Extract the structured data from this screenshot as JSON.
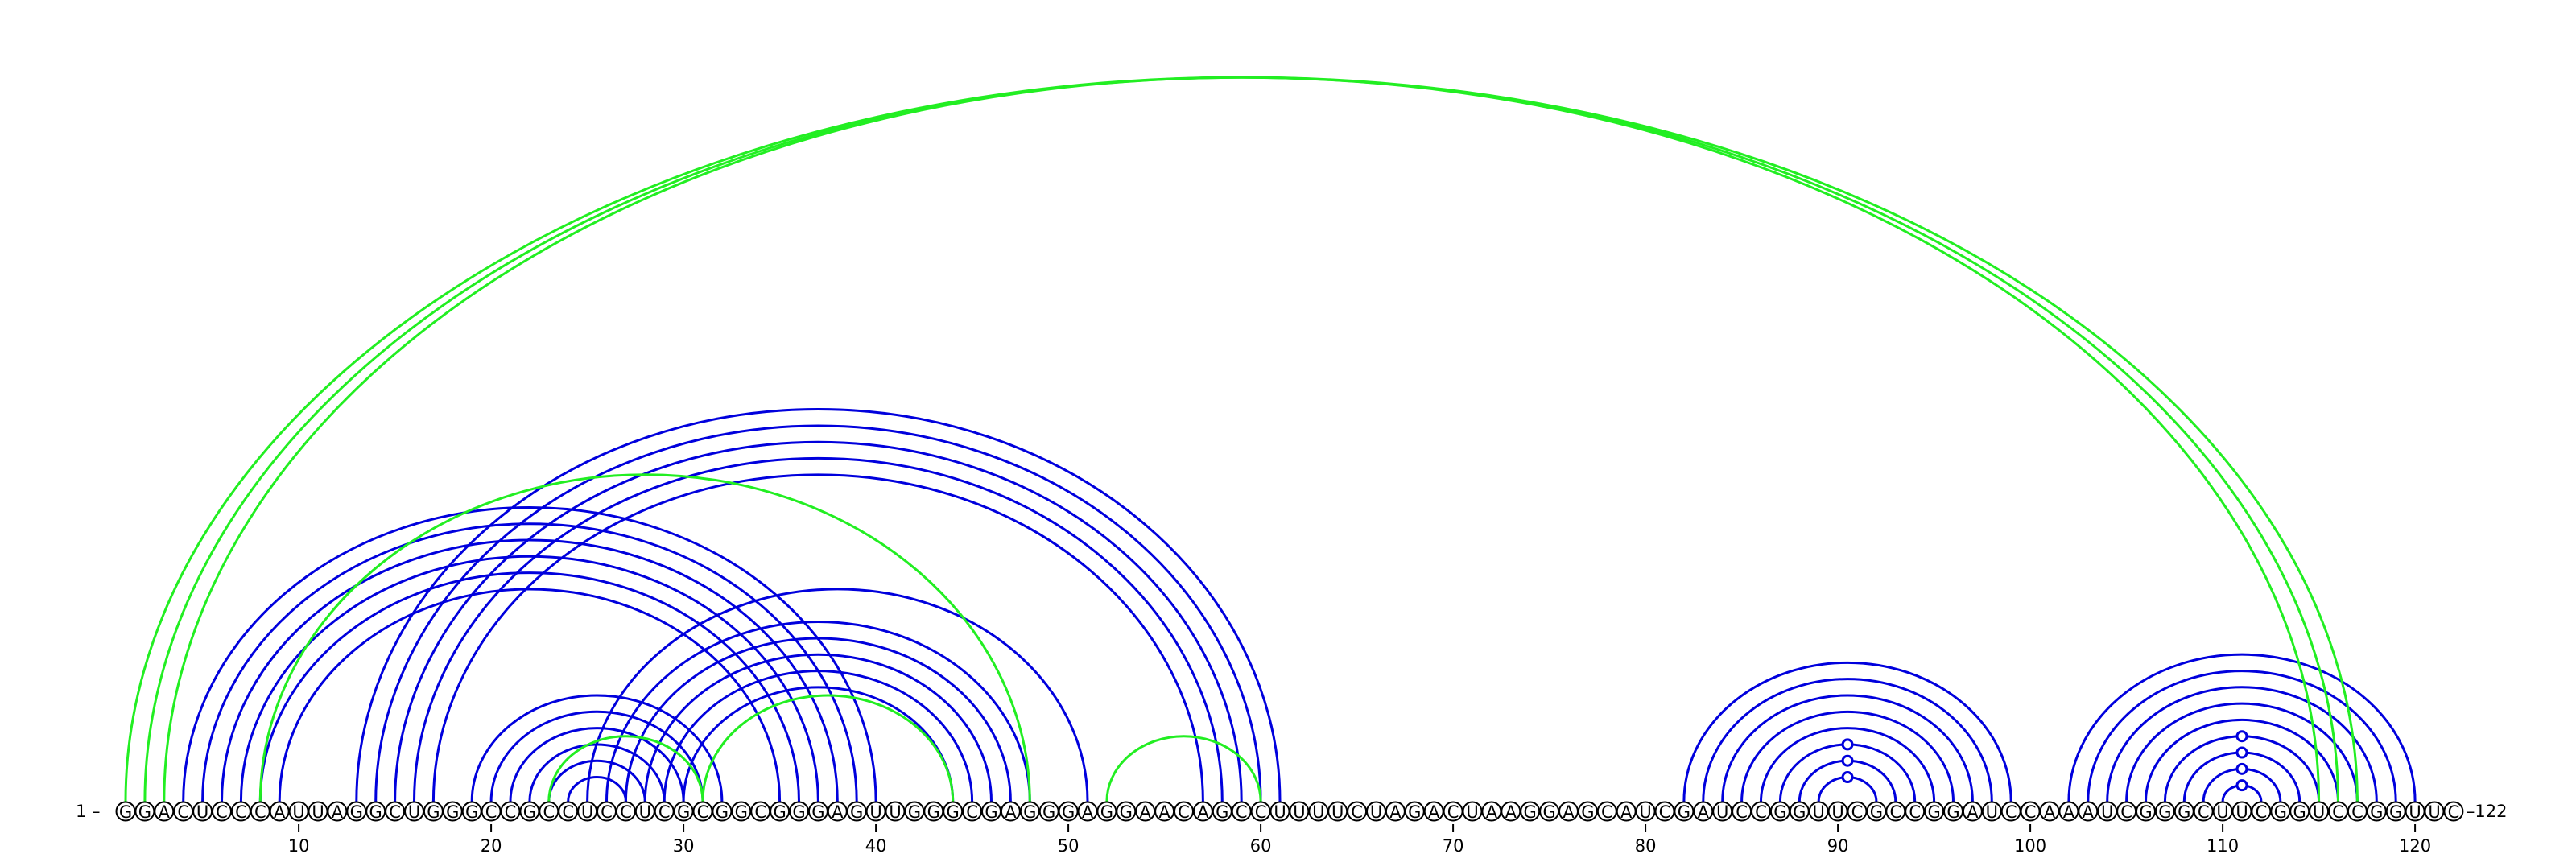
{
  "sequence": "GGACUCCCAUUAGGCUGGGCCGCCUCCUCGCGGCGGGAGUUGGGCGAGGGAGGAACAGCCUUUUCUAGACUAAGGAGCAUCGAUCCGGUUCGCCGGAUCCAAAUCGGGCUUCGGUCCGGUUC",
  "start_label": "1 –",
  "end_label": "–122",
  "ticks": [
    {
      "pos": 10,
      "label": "10"
    },
    {
      "pos": 20,
      "label": "20"
    },
    {
      "pos": 30,
      "label": "30"
    },
    {
      "pos": 40,
      "label": "40"
    },
    {
      "pos": 50,
      "label": "50"
    },
    {
      "pos": 60,
      "label": "60"
    },
    {
      "pos": 70,
      "label": "70"
    },
    {
      "pos": 80,
      "label": "80"
    },
    {
      "pos": 90,
      "label": "90"
    },
    {
      "pos": 100,
      "label": "100"
    },
    {
      "pos": 110,
      "label": "110"
    },
    {
      "pos": 120,
      "label": "120"
    }
  ],
  "colors": {
    "blue": "#0000dd",
    "green": "#22ee22",
    "circle_outline": "#000000"
  },
  "arcs": {
    "green": [
      [
        1,
        117
      ],
      [
        2,
        116
      ],
      [
        3,
        115
      ],
      [
        8,
        48
      ],
      [
        23,
        31
      ],
      [
        31,
        44
      ],
      [
        52,
        60
      ]
    ],
    "blue": [
      [
        4,
        40
      ],
      [
        5,
        39
      ],
      [
        6,
        38
      ],
      [
        7,
        37
      ],
      [
        8,
        36
      ],
      [
        9,
        35
      ],
      [
        13,
        61
      ],
      [
        14,
        60
      ],
      [
        15,
        59
      ],
      [
        16,
        58
      ],
      [
        17,
        57
      ],
      [
        19,
        32
      ],
      [
        20,
        31
      ],
      [
        21,
        30
      ],
      [
        22,
        29
      ],
      [
        23,
        28
      ],
      [
        24,
        27
      ],
      [
        25,
        51
      ],
      [
        26,
        48
      ],
      [
        27,
        47
      ],
      [
        28,
        46
      ],
      [
        29,
        45
      ],
      [
        30,
        44
      ],
      [
        82,
        99
      ],
      [
        83,
        98
      ],
      [
        84,
        97
      ],
      [
        85,
        96
      ],
      [
        86,
        95
      ],
      [
        87,
        94
      ],
      [
        88,
        93
      ],
      [
        89,
        92
      ],
      [
        102,
        120
      ],
      [
        103,
        119
      ],
      [
        104,
        118
      ],
      [
        105,
        117
      ],
      [
        106,
        116
      ],
      [
        107,
        115
      ],
      [
        108,
        114
      ],
      [
        109,
        113
      ],
      [
        110,
        112
      ]
    ]
  },
  "arc_markers": [
    91,
    111
  ]
}
